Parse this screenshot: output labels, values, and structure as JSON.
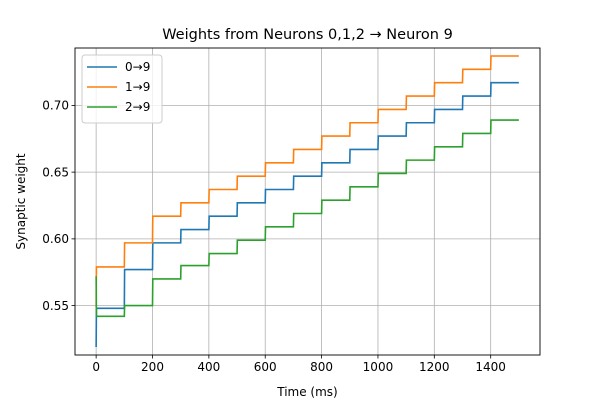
{
  "chart_data": {
    "type": "line",
    "title": "Weights from Neurons 0,1,2 → Neuron 9",
    "xlabel": "Time (ms)",
    "ylabel": "Synaptic weight",
    "xlim": [
      -75,
      1575
    ],
    "ylim": [
      0.513,
      0.743
    ],
    "xticks": [
      0,
      200,
      400,
      600,
      800,
      1000,
      1200,
      1400
    ],
    "xtick_labels": [
      "0",
      "200",
      "400",
      "600",
      "800",
      "1000",
      "1200",
      "1400"
    ],
    "yticks": [
      0.55,
      0.6,
      0.65,
      0.7
    ],
    "ytick_labels": [
      "0.55",
      "0.60",
      "0.65",
      "0.70"
    ],
    "grid": true,
    "legend_position": "top-left",
    "step": true,
    "series": [
      {
        "name": "0→9",
        "color": "#1f77b4",
        "points": [
          [
            0,
            0.519
          ],
          [
            1,
            0.548
          ],
          [
            100,
            0.548
          ],
          [
            101,
            0.577
          ],
          [
            200,
            0.577
          ],
          [
            201,
            0.597
          ],
          [
            300,
            0.597
          ],
          [
            301,
            0.607
          ],
          [
            400,
            0.607
          ],
          [
            401,
            0.617
          ],
          [
            500,
            0.617
          ],
          [
            501,
            0.627
          ],
          [
            600,
            0.627
          ],
          [
            601,
            0.637
          ],
          [
            700,
            0.637
          ],
          [
            701,
            0.647
          ],
          [
            800,
            0.647
          ],
          [
            801,
            0.657
          ],
          [
            900,
            0.657
          ],
          [
            901,
            0.667
          ],
          [
            1000,
            0.667
          ],
          [
            1001,
            0.677
          ],
          [
            1100,
            0.677
          ],
          [
            1101,
            0.687
          ],
          [
            1200,
            0.687
          ],
          [
            1201,
            0.697
          ],
          [
            1300,
            0.697
          ],
          [
            1301,
            0.707
          ],
          [
            1400,
            0.707
          ],
          [
            1401,
            0.717
          ],
          [
            1500,
            0.717
          ]
        ]
      },
      {
        "name": "1→9",
        "color": "#ff7f0e",
        "points": [
          [
            0,
            0.549
          ],
          [
            1,
            0.579
          ],
          [
            100,
            0.579
          ],
          [
            101,
            0.597
          ],
          [
            200,
            0.597
          ],
          [
            201,
            0.617
          ],
          [
            300,
            0.617
          ],
          [
            301,
            0.627
          ],
          [
            400,
            0.627
          ],
          [
            401,
            0.637
          ],
          [
            500,
            0.637
          ],
          [
            501,
            0.647
          ],
          [
            600,
            0.647
          ],
          [
            601,
            0.657
          ],
          [
            700,
            0.657
          ],
          [
            701,
            0.667
          ],
          [
            800,
            0.667
          ],
          [
            801,
            0.677
          ],
          [
            900,
            0.677
          ],
          [
            901,
            0.687
          ],
          [
            1000,
            0.687
          ],
          [
            1001,
            0.697
          ],
          [
            1100,
            0.697
          ],
          [
            1101,
            0.707
          ],
          [
            1200,
            0.707
          ],
          [
            1201,
            0.717
          ],
          [
            1300,
            0.717
          ],
          [
            1301,
            0.727
          ],
          [
            1400,
            0.727
          ],
          [
            1401,
            0.737
          ],
          [
            1500,
            0.737
          ]
        ]
      },
      {
        "name": "2→9",
        "color": "#2ca02c",
        "points": [
          [
            0,
            0.572
          ],
          [
            1,
            0.542
          ],
          [
            100,
            0.542
          ],
          [
            101,
            0.55
          ],
          [
            200,
            0.55
          ],
          [
            201,
            0.57
          ],
          [
            300,
            0.57
          ],
          [
            301,
            0.58
          ],
          [
            400,
            0.58
          ],
          [
            401,
            0.589
          ],
          [
            500,
            0.589
          ],
          [
            501,
            0.599
          ],
          [
            600,
            0.599
          ],
          [
            601,
            0.609
          ],
          [
            700,
            0.609
          ],
          [
            701,
            0.619
          ],
          [
            800,
            0.619
          ],
          [
            801,
            0.629
          ],
          [
            900,
            0.629
          ],
          [
            901,
            0.639
          ],
          [
            1000,
            0.639
          ],
          [
            1001,
            0.649
          ],
          [
            1100,
            0.649
          ],
          [
            1101,
            0.659
          ],
          [
            1200,
            0.659
          ],
          [
            1201,
            0.669
          ],
          [
            1300,
            0.669
          ],
          [
            1301,
            0.679
          ],
          [
            1400,
            0.679
          ],
          [
            1401,
            0.689
          ],
          [
            1500,
            0.689
          ]
        ]
      }
    ]
  }
}
